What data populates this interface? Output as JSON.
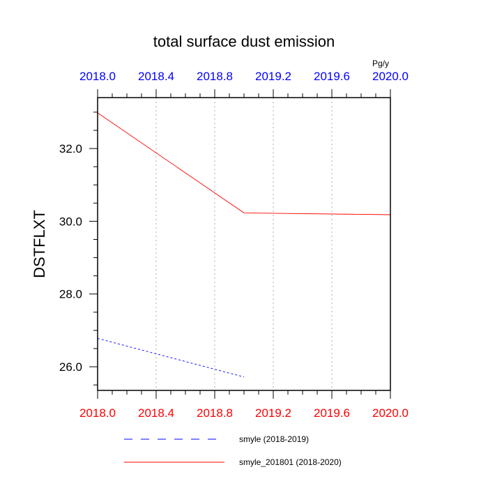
{
  "chart_data": {
    "type": "line",
    "title": "total surface dust emission",
    "ylabel": "DSTFLXT",
    "units": "Pg/y",
    "xlim": [
      2018.0,
      2020.0
    ],
    "ylim": [
      25.35,
      33.4
    ],
    "x_ticks": [
      "2018.0",
      "2018.4",
      "2018.8",
      "2019.2",
      "2019.6",
      "2020.0"
    ],
    "x_tick_values": [
      2018.0,
      2018.4,
      2018.8,
      2019.2,
      2019.6,
      2020.0
    ],
    "y_ticks": [
      "26.0",
      "28.0",
      "30.0",
      "32.0"
    ],
    "y_tick_values": [
      26.0,
      28.0,
      30.0,
      32.0
    ],
    "top_axis_color": "#0000ff",
    "bottom_axis_color": "#ff0000",
    "grid": "dotted vertical",
    "legend_position": "bottom",
    "series": [
      {
        "name": "smyle (2018-2019)",
        "color": "#0000ff",
        "dash": "dashed",
        "x": [
          2018.0,
          2019.0
        ],
        "values": [
          26.78,
          25.72
        ]
      },
      {
        "name": "smyle_201801 (2018-2020)",
        "color": "#ff0000",
        "dash": "solid",
        "x": [
          2018.0,
          2019.0,
          2020.0
        ],
        "values": [
          32.98,
          30.23,
          30.18
        ]
      }
    ]
  }
}
